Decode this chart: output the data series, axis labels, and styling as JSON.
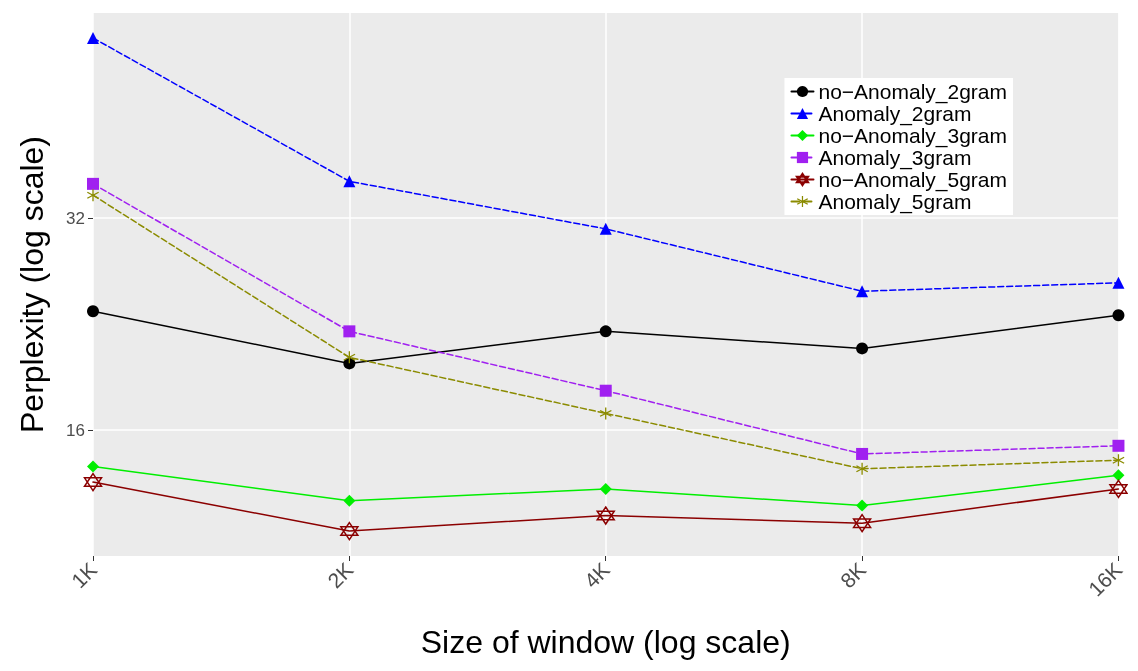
{
  "chart_data": {
    "type": "line",
    "xlabel": "Size of window (log scale)",
    "ylabel": "Perplexity (log scale)",
    "categories": [
      "1K",
      "2K",
      "4K",
      "8K",
      "16K"
    ],
    "log": true,
    "ylim": [
      10.6,
      62.6
    ],
    "yticks": [
      16,
      32
    ],
    "grid": true,
    "legend": "top right",
    "series": [
      {
        "name": "no−Anomaly_2gram",
        "color": "#000000",
        "marker": "circle",
        "line_style": "solid",
        "values": [
          23.6,
          19.9,
          22.1,
          20.9,
          23.3
        ]
      },
      {
        "name": "Anomaly_2gram",
        "color": "#0000ff",
        "marker": "triangle",
        "line_style": "dashed",
        "values": [
          57.7,
          36.1,
          30.9,
          25.2,
          25.9
        ]
      },
      {
        "name": "no−Anomaly_3gram",
        "color": "#00ee00",
        "marker": "diamond",
        "line_style": "solid",
        "values": [
          14.2,
          12.7,
          13.2,
          12.5,
          13.8
        ]
      },
      {
        "name": "Anomaly_3gram",
        "color": "#a020f0",
        "marker": "square",
        "line_style": "dashed",
        "values": [
          35.8,
          22.1,
          18.2,
          14.8,
          15.2
        ]
      },
      {
        "name": "no−Anomaly_5gram",
        "color": "#8b0000",
        "marker": "star",
        "line_style": "solid",
        "values": [
          13.5,
          11.5,
          12.1,
          11.8,
          13.2
        ]
      },
      {
        "name": "Anomaly_5gram",
        "color": "#8b8b00",
        "marker": "cross",
        "line_style": "dashed",
        "values": [
          34.5,
          20.3,
          16.9,
          14.1,
          14.5
        ]
      }
    ]
  }
}
